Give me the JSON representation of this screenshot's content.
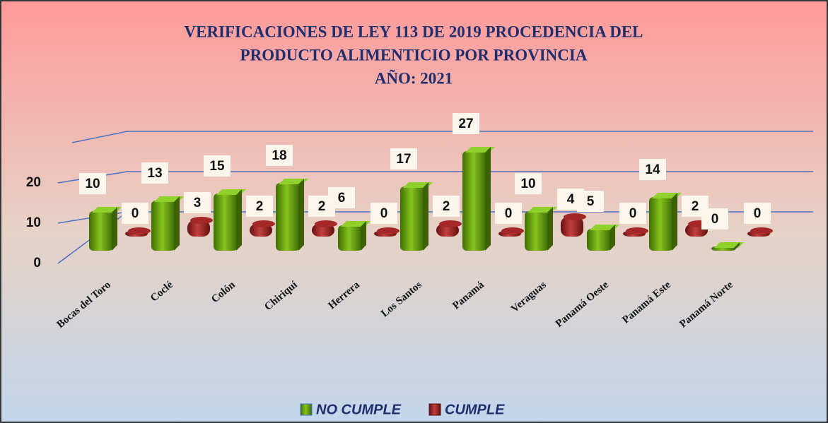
{
  "chart_data": {
    "type": "bar3d",
    "title": [
      "VERIFICACIONES DE LEY 113 DE 2019 PROCEDENCIA DEL",
      "PRODUCTO ALIMENTICIO POR PROVINCIA",
      "AÑO: 2021"
    ],
    "categories": [
      "Bocas del Toro",
      "Coclé",
      "Colón",
      "Chiriquí",
      "Herrera",
      "Los Santos",
      "Panamá",
      "Veraguas",
      "Panamá Oeste",
      "Panamá Este",
      "Panamá Norte"
    ],
    "series": [
      {
        "name": "NO CUMPLE",
        "color": "#5e9a10",
        "values": [
          10,
          13,
          15,
          18,
          6,
          17,
          27,
          10,
          5,
          14,
          0
        ]
      },
      {
        "name": "CUMPLE",
        "color": "#8b1a1a",
        "values": [
          0,
          3,
          2,
          2,
          0,
          2,
          0,
          4,
          0,
          2,
          0
        ]
      }
    ],
    "ylim": [
      0,
      30
    ],
    "yticks": [
      0,
      10,
      20
    ],
    "grid": true,
    "legend": "bottom"
  }
}
